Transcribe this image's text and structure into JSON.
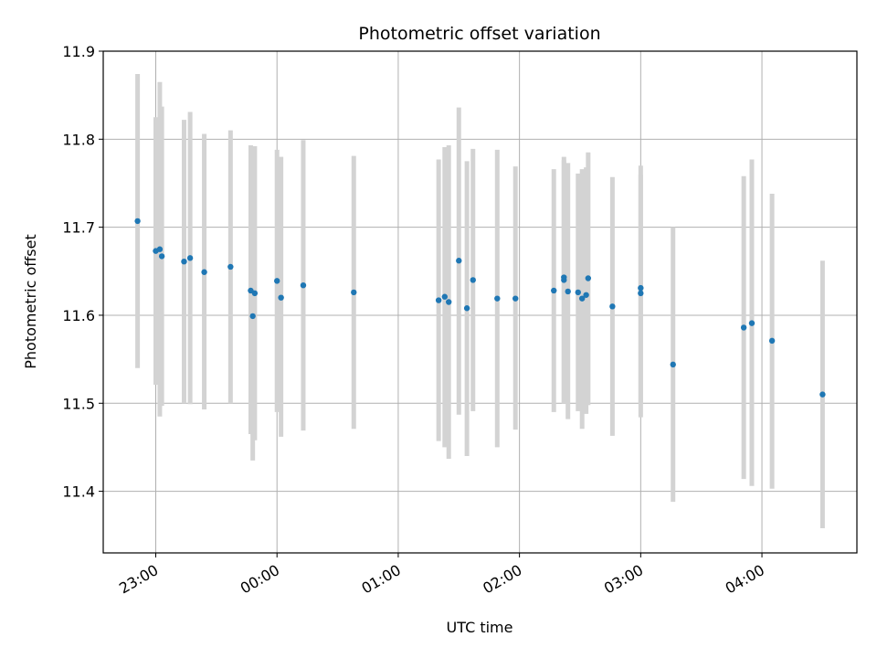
{
  "chart_data": {
    "type": "scatter",
    "title": "Photometric offset variation",
    "xlabel": "UTC time",
    "ylabel": "Photometric offset",
    "x_tick_labels": [
      "23:00",
      "00:00",
      "01:00",
      "02:00",
      "03:00",
      "04:00"
    ],
    "y_tick_labels": [
      "11.4",
      "11.5",
      "11.6",
      "11.7",
      "11.8",
      "11.9"
    ],
    "xlim": [
      "22:34",
      "04:47"
    ],
    "ylim": [
      11.33,
      11.9
    ],
    "grid": true,
    "colors": {
      "point": "#1f77b4",
      "errorbar": "#d3d3d3",
      "grid": "#b0b0b0"
    },
    "points": [
      {
        "x": "22:51",
        "y": 11.707,
        "low": 11.54,
        "high": 11.874
      },
      {
        "x": "23:00",
        "y": 11.673,
        "low": 11.521,
        "high": 11.825
      },
      {
        "x": "23:02",
        "y": 11.675,
        "low": 11.485,
        "high": 11.865
      },
      {
        "x": "23:03",
        "y": 11.667,
        "low": 11.497,
        "high": 11.837
      },
      {
        "x": "23:14",
        "y": 11.661,
        "low": 11.5,
        "high": 11.822
      },
      {
        "x": "23:17",
        "y": 11.665,
        "low": 11.499,
        "high": 11.831
      },
      {
        "x": "23:24",
        "y": 11.649,
        "low": 11.493,
        "high": 11.806
      },
      {
        "x": "23:37",
        "y": 11.655,
        "low": 11.5,
        "high": 11.81
      },
      {
        "x": "23:47",
        "y": 11.628,
        "low": 11.465,
        "high": 11.793
      },
      {
        "x": "23:48",
        "y": 11.599,
        "low": 11.435,
        "high": 11.792
      },
      {
        "x": "23:49",
        "y": 11.625,
        "low": 11.458,
        "high": 11.792
      },
      {
        "x": "00:00",
        "y": 11.639,
        "low": 11.49,
        "high": 11.788
      },
      {
        "x": "00:02",
        "y": 11.62,
        "low": 11.462,
        "high": 11.78
      },
      {
        "x": "00:13",
        "y": 11.634,
        "low": 11.469,
        "high": 11.799
      },
      {
        "x": "00:38",
        "y": 11.626,
        "low": 11.471,
        "high": 11.781
      },
      {
        "x": "01:20",
        "y": 11.617,
        "low": 11.457,
        "high": 11.777
      },
      {
        "x": "01:23",
        "y": 11.621,
        "low": 11.45,
        "high": 11.791
      },
      {
        "x": "01:25",
        "y": 11.615,
        "low": 11.437,
        "high": 11.793
      },
      {
        "x": "01:30",
        "y": 11.662,
        "low": 11.487,
        "high": 11.836
      },
      {
        "x": "01:34",
        "y": 11.608,
        "low": 11.44,
        "high": 11.775
      },
      {
        "x": "01:37",
        "y": 11.64,
        "low": 11.491,
        "high": 11.789
      },
      {
        "x": "01:49",
        "y": 11.619,
        "low": 11.45,
        "high": 11.788
      },
      {
        "x": "01:58",
        "y": 11.619,
        "low": 11.47,
        "high": 11.769
      },
      {
        "x": "02:17",
        "y": 11.628,
        "low": 11.49,
        "high": 11.766
      },
      {
        "x": "02:22",
        "y": 11.64,
        "low": 11.5,
        "high": 11.78
      },
      {
        "x": "02:22",
        "y": 11.643,
        "low": 11.5,
        "high": 11.776
      },
      {
        "x": "02:24",
        "y": 11.627,
        "low": 11.482,
        "high": 11.773
      },
      {
        "x": "02:29",
        "y": 11.626,
        "low": 11.491,
        "high": 11.761
      },
      {
        "x": "02:31",
        "y": 11.619,
        "low": 11.471,
        "high": 11.766
      },
      {
        "x": "02:33",
        "y": 11.623,
        "low": 11.488,
        "high": 11.768
      },
      {
        "x": "02:34",
        "y": 11.642,
        "low": 11.498,
        "high": 11.785
      },
      {
        "x": "02:46",
        "y": 11.61,
        "low": 11.463,
        "high": 11.757
      },
      {
        "x": "03:00",
        "y": 11.625,
        "low": 11.484,
        "high": 11.77
      },
      {
        "x": "03:00",
        "y": 11.631,
        "low": 11.5,
        "high": 11.76
      },
      {
        "x": "03:16",
        "y": 11.544,
        "low": 11.388,
        "high": 11.7
      },
      {
        "x": "03:51",
        "y": 11.586,
        "low": 11.414,
        "high": 11.758
      },
      {
        "x": "03:55",
        "y": 11.591,
        "low": 11.406,
        "high": 11.777
      },
      {
        "x": "04:05",
        "y": 11.571,
        "low": 11.403,
        "high": 11.738
      },
      {
        "x": "04:30",
        "y": 11.51,
        "low": 11.358,
        "high": 11.662
      }
    ]
  }
}
